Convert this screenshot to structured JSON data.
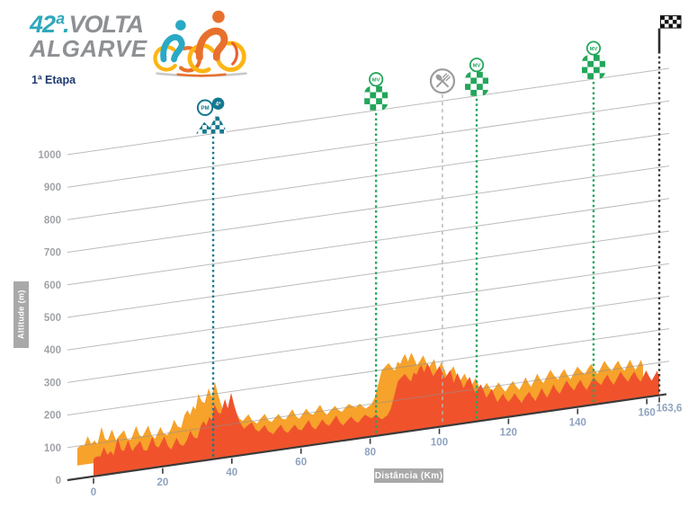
{
  "header": {
    "logo_num": "42ª",
    "logo_dot": ".",
    "logo_line1": "VOLTA",
    "logo_line2": "ALGARVE",
    "stage": "1ª Etapa"
  },
  "colors": {
    "profile_front": "#F0532C",
    "profile_back": "#F6A22B",
    "teal": "#15788F",
    "green": "#22A65B",
    "feed_gray": "#9C9C9C",
    "grid": "#8F8F8F",
    "axis": "#3B3B3B",
    "finish": "#3A3A3A",
    "x_tick_label": "#8FA3BF",
    "y_tick_label": "#9FA3A8",
    "box_bg": "#A9A9A9",
    "navy": "#1F3A6E",
    "logo_teal": "#30A8BC",
    "logo_gray": "#8E9093",
    "cyc_blue": "#2AA9C5",
    "cyc_orange": "#E8702D",
    "cyc_yellow": "#FDB515",
    "ground": "#C8C9CA"
  },
  "chart_data": {
    "type": "area",
    "title": "1ª Etapa",
    "xlabel": "Distância (Km)",
    "ylabel": "Altitude (m)",
    "x_ticks": [
      0,
      20,
      40,
      60,
      80,
      100,
      120,
      140,
      160
    ],
    "y_ticks": [
      0,
      100,
      200,
      300,
      400,
      500,
      600,
      700,
      800,
      900,
      1000
    ],
    "finish_km": 163.6,
    "finish_label": "163,6",
    "total_km_label": "163,6",
    "grid_on": true,
    "markers": [
      {
        "type": "mountain",
        "km": 34.6,
        "badge1": "PM",
        "badge2": "4ª"
      },
      {
        "type": "sprint",
        "km": 81.7,
        "label": "MV"
      },
      {
        "type": "feed",
        "km": 100.9
      },
      {
        "type": "sprint",
        "km": 110.8,
        "label": "MV"
      },
      {
        "type": "sprint",
        "km": 144.6,
        "label": "MV"
      },
      {
        "type": "finish",
        "km": 163.6
      }
    ],
    "profile": [
      [
        0,
        52
      ],
      [
        0.5,
        58
      ],
      [
        1.2,
        60
      ],
      [
        2,
        58
      ],
      [
        3,
        86
      ],
      [
        4,
        60
      ],
      [
        5,
        70
      ],
      [
        5.8,
        56
      ],
      [
        7,
        108
      ],
      [
        8,
        70
      ],
      [
        8.8,
        64
      ],
      [
        10,
        96
      ],
      [
        11.2,
        60
      ],
      [
        12,
        72
      ],
      [
        13.5,
        88
      ],
      [
        14.5,
        58
      ],
      [
        15.5,
        56
      ],
      [
        17,
        96
      ],
      [
        18,
        66
      ],
      [
        18.8,
        60
      ],
      [
        20.5,
        92
      ],
      [
        21.5,
        60
      ],
      [
        22.5,
        48
      ],
      [
        24,
        82
      ],
      [
        25,
        60
      ],
      [
        26,
        54
      ],
      [
        27,
        70
      ],
      [
        28,
        98
      ],
      [
        29,
        76
      ],
      [
        30,
        70
      ],
      [
        31,
        108
      ],
      [
        31.8,
        122
      ],
      [
        32.6,
        106
      ],
      [
        33.5,
        132
      ],
      [
        34.2,
        120
      ],
      [
        35,
        168
      ],
      [
        36,
        142
      ],
      [
        36.8,
        136
      ],
      [
        38,
        180
      ],
      [
        38.8,
        150
      ],
      [
        39.8,
        196
      ],
      [
        40.6,
        160
      ],
      [
        41.4,
        130
      ],
      [
        42.2,
        104
      ],
      [
        43.5,
        80
      ],
      [
        44.5,
        88
      ],
      [
        45.8,
        96
      ],
      [
        46.8,
        74
      ],
      [
        47.8,
        64
      ],
      [
        49.5,
        82
      ],
      [
        50.5,
        62
      ],
      [
        52,
        50
      ],
      [
        53,
        64
      ],
      [
        54.2,
        76
      ],
      [
        55.2,
        56
      ],
      [
        56.2,
        48
      ],
      [
        57.2,
        60
      ],
      [
        58.2,
        70
      ],
      [
        59.2,
        54
      ],
      [
        60.2,
        50
      ],
      [
        61.2,
        64
      ],
      [
        62.2,
        78
      ],
      [
        63.2,
        56
      ],
      [
        64.2,
        46
      ],
      [
        65.2,
        60
      ],
      [
        66.2,
        74
      ],
      [
        67.2,
        58
      ],
      [
        68.2,
        52
      ],
      [
        69.2,
        66
      ],
      [
        70.2,
        80
      ],
      [
        71.2,
        58
      ],
      [
        72.2,
        46
      ],
      [
        73.2,
        58
      ],
      [
        74.5,
        70
      ],
      [
        75.5,
        56
      ],
      [
        76.5,
        48
      ],
      [
        77.5,
        60
      ],
      [
        78.5,
        70
      ],
      [
        79.5,
        62
      ],
      [
        80.5,
        56
      ],
      [
        81.7,
        66
      ],
      [
        82.7,
        54
      ],
      [
        83.5,
        48
      ],
      [
        84.3,
        54
      ],
      [
        85,
        58
      ],
      [
        86,
        78
      ],
      [
        86.8,
        108
      ],
      [
        88,
        158
      ],
      [
        89,
        168
      ],
      [
        90,
        178
      ],
      [
        91,
        162
      ],
      [
        91.8,
        152
      ],
      [
        92.6,
        178
      ],
      [
        93.4,
        170
      ],
      [
        94.2,
        190
      ],
      [
        94.8,
        198
      ],
      [
        95.6,
        174
      ],
      [
        96.6,
        200
      ],
      [
        97.4,
        180
      ],
      [
        98.2,
        158
      ],
      [
        99,
        170
      ],
      [
        100,
        186
      ],
      [
        100.8,
        166
      ],
      [
        101.6,
        146
      ],
      [
        102.4,
        158
      ],
      [
        103.2,
        170
      ],
      [
        104.2,
        128
      ],
      [
        105.2,
        158
      ],
      [
        106.2,
        132
      ],
      [
        107,
        108
      ],
      [
        108,
        128
      ],
      [
        108.8,
        140
      ],
      [
        109.6,
        112
      ],
      [
        110.4,
        88
      ],
      [
        111.2,
        100
      ],
      [
        112,
        112
      ],
      [
        112.8,
        92
      ],
      [
        113.6,
        68
      ],
      [
        114.4,
        80
      ],
      [
        115.2,
        94
      ],
      [
        116,
        70
      ],
      [
        116.8,
        50
      ],
      [
        117.6,
        62
      ],
      [
        118.4,
        74
      ],
      [
        119.2,
        58
      ],
      [
        120,
        46
      ],
      [
        121,
        58
      ],
      [
        121.8,
        70
      ],
      [
        122.8,
        52
      ],
      [
        123.8,
        38
      ],
      [
        124.8,
        54
      ],
      [
        126,
        68
      ],
      [
        126.8,
        52
      ],
      [
        127.8,
        38
      ],
      [
        128.8,
        56
      ],
      [
        129.6,
        74
      ],
      [
        130.4,
        56
      ],
      [
        131.2,
        42
      ],
      [
        132.2,
        62
      ],
      [
        133,
        80
      ],
      [
        133.8,
        62
      ],
      [
        134.8,
        48
      ],
      [
        135.8,
        68
      ],
      [
        136.8,
        86
      ],
      [
        137.8,
        68
      ],
      [
        139,
        52
      ],
      [
        139.8,
        68
      ],
      [
        140.8,
        82
      ],
      [
        141.6,
        64
      ],
      [
        142.6,
        48
      ],
      [
        143.6,
        66
      ],
      [
        144.6,
        84
      ],
      [
        145.6,
        70
      ],
      [
        146.8,
        57
      ],
      [
        147.6,
        72
      ],
      [
        148.6,
        86
      ],
      [
        149.4,
        68
      ],
      [
        150.4,
        52
      ],
      [
        151.4,
        70
      ],
      [
        152.4,
        90
      ],
      [
        153.4,
        72
      ],
      [
        154.6,
        55
      ],
      [
        155.4,
        70
      ],
      [
        156.4,
        84
      ],
      [
        157.2,
        66
      ],
      [
        158.2,
        50
      ],
      [
        159,
        66
      ],
      [
        159.8,
        82
      ],
      [
        160.6,
        64
      ],
      [
        161.4,
        48
      ],
      [
        162.2,
        62
      ],
      [
        163,
        76
      ],
      [
        163.6,
        58
      ]
    ]
  }
}
